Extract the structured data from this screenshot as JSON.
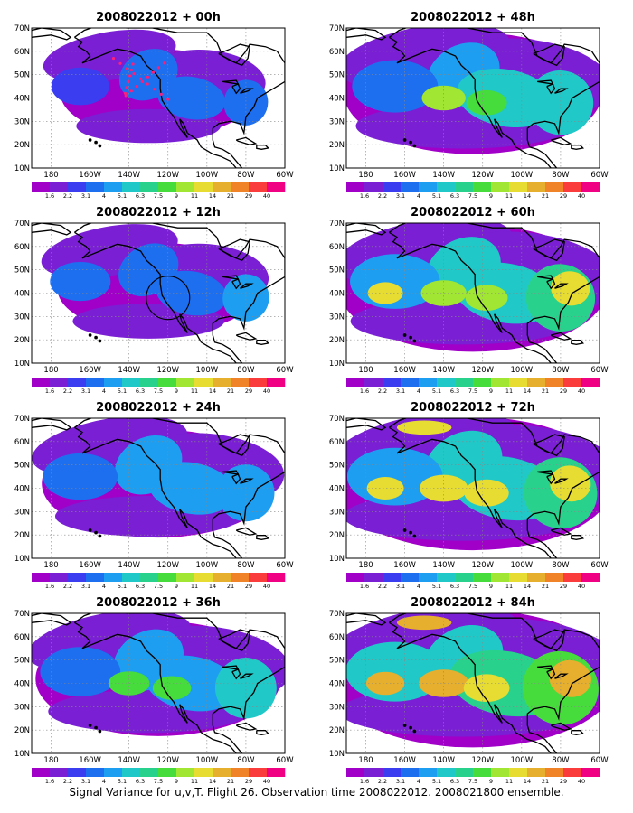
{
  "figure": {
    "caption": "Signal Variance for u,v,T. Flight 26. Observation time 2008022012. 2008021800 ensemble.",
    "panels": [
      {
        "title": "2008022012 + 00h",
        "column": "left",
        "row": 0,
        "intensity": 0.15,
        "coverage": 0.38,
        "has_track": true,
        "has_circle": false
      },
      {
        "title": "2008022012 + 12h",
        "column": "left",
        "row": 1,
        "intensity": 0.22,
        "coverage": 0.42,
        "has_track": false,
        "has_circle": true
      },
      {
        "title": "2008022012 + 24h",
        "column": "left",
        "row": 2,
        "intensity": 0.3,
        "coverage": 0.62,
        "has_track": false,
        "has_circle": false
      },
      {
        "title": "2008022012 + 36h",
        "column": "left",
        "row": 3,
        "intensity": 0.38,
        "coverage": 0.7,
        "has_track": false,
        "has_circle": false
      },
      {
        "title": "2008022012 + 48h",
        "column": "right",
        "row": 0,
        "intensity": 0.45,
        "coverage": 0.78,
        "has_track": false,
        "has_circle": false
      },
      {
        "title": "2008022012 + 60h",
        "column": "right",
        "row": 1,
        "intensity": 0.55,
        "coverage": 0.84,
        "has_track": false,
        "has_circle": false
      },
      {
        "title": "2008022012 + 72h",
        "column": "right",
        "row": 2,
        "intensity": 0.65,
        "coverage": 0.92,
        "has_track": false,
        "has_circle": false
      },
      {
        "title": "2008022012 + 84h",
        "column": "right",
        "row": 3,
        "intensity": 0.75,
        "coverage": 0.97,
        "has_track": false,
        "has_circle": false
      }
    ],
    "lat_labels": [
      "70N",
      "60N",
      "50N",
      "40N",
      "30N",
      "20N",
      "10N"
    ],
    "lon_labels": [
      "180",
      "160W",
      "140W",
      "120W",
      "100W",
      "80W",
      "60W"
    ],
    "colorbar": {
      "labels": [
        "1.6",
        "2.2",
        "3.1",
        "4",
        "5.1",
        "6.3",
        "7.5",
        "9",
        "11",
        "14",
        "21",
        "29",
        "40"
      ],
      "colors": [
        "#a000c8",
        "#7a1fd4",
        "#3a3ef0",
        "#1e6ef0",
        "#1e9ef0",
        "#20c8c8",
        "#28d28c",
        "#46dc3c",
        "#a0e632",
        "#e6dc32",
        "#e6af2d",
        "#f08228",
        "#fa3c3c",
        "#f00082"
      ]
    },
    "lon_range": [
      -190,
      -60
    ],
    "lat_range": [
      10,
      70
    ]
  }
}
